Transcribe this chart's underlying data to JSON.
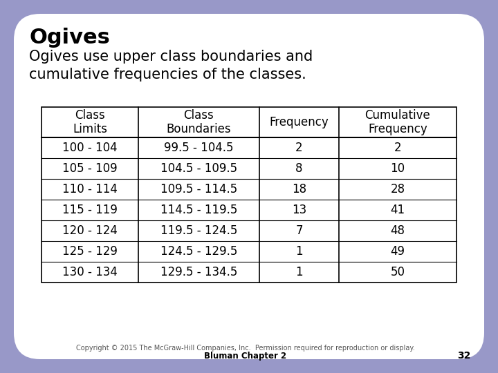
{
  "title": "Ogives",
  "subtitle": "Ogives use upper class boundaries and\ncumulative frequencies of the classes.",
  "bg_color": "#9898c8",
  "card_color": "#ffffff",
  "col_headers": [
    "Class\nLimits",
    "Class\nBoundaries",
    "Frequency",
    "Cumulative\nFrequency"
  ],
  "rows": [
    [
      "100 - 104",
      "99.5 - 104.5",
      "2",
      "2"
    ],
    [
      "105 - 109",
      "104.5 - 109.5",
      "8",
      "10"
    ],
    [
      "110 - 114",
      "109.5 - 114.5",
      "18",
      "28"
    ],
    [
      "115 - 119",
      "114.5 - 119.5",
      "13",
      "41"
    ],
    [
      "120 - 124",
      "119.5 - 124.5",
      "7",
      "48"
    ],
    [
      "125 - 129",
      "124.5 - 129.5",
      "1",
      "49"
    ],
    [
      "130 - 134",
      "129.5 - 134.5",
      "1",
      "50"
    ]
  ],
  "footer_line1": "Copyright © 2015 The McGraw-Hill Companies, Inc.  Permission required for reproduction or display.",
  "footer_line2": "Bluman Chapter 2",
  "page_number": "32",
  "title_fontsize": 22,
  "subtitle_fontsize": 15,
  "table_fontsize": 12
}
